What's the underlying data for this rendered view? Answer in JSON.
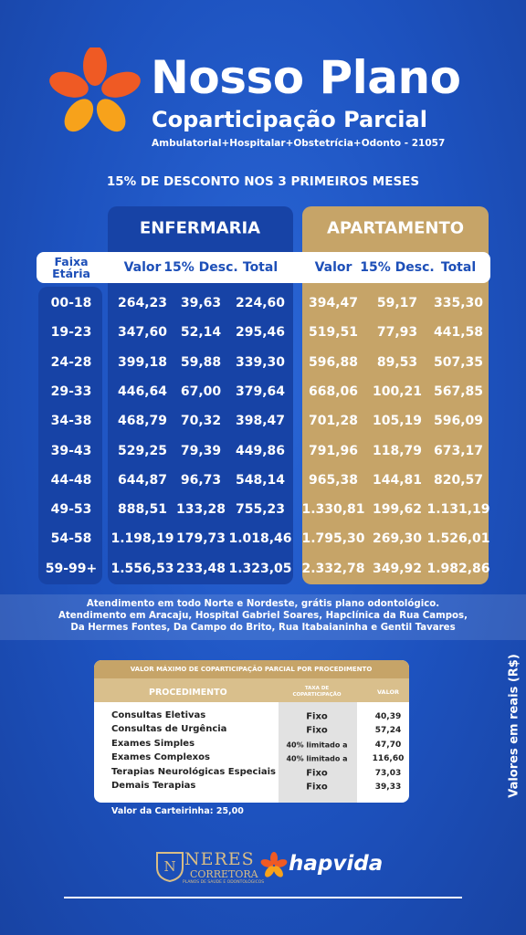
{
  "header": {
    "title": "Nosso Plano",
    "subtitle": "Coparticipação Parcial",
    "coverage": "Ambulatorial+Hospitalar+Obstetrícia+Odonto - 21057"
  },
  "promo": "15% DE DESCONTO NOS 3 PRIMEIROS MESES",
  "table": {
    "groups": [
      "ENFERMARIA",
      "APARTAMENTO"
    ],
    "columns": [
      "Faixa Etária",
      "Valor",
      "15% Desc.",
      "Total",
      "Valor",
      "15% Desc.",
      "Total"
    ],
    "rows": [
      [
        "00-18",
        "264,23",
        "39,63",
        "224,60",
        "394,47",
        "59,17",
        "335,30"
      ],
      [
        "19-23",
        "347,60",
        "52,14",
        "295,46",
        "519,51",
        "77,93",
        "441,58"
      ],
      [
        "24-28",
        "399,18",
        "59,88",
        "339,30",
        "596,88",
        "89,53",
        "507,35"
      ],
      [
        "29-33",
        "446,64",
        "67,00",
        "379,64",
        "668,06",
        "100,21",
        "567,85"
      ],
      [
        "34-38",
        "468,79",
        "70,32",
        "398,47",
        "701,28",
        "105,19",
        "596,09"
      ],
      [
        "39-43",
        "529,25",
        "79,39",
        "449,86",
        "791,96",
        "118,79",
        "673,17"
      ],
      [
        "44-48",
        "644,87",
        "96,73",
        "548,14",
        "965,38",
        "144,81",
        "820,57"
      ],
      [
        "49-53",
        "888,51",
        "133,28",
        "755,23",
        "1.330,81",
        "199,62",
        "1.131,19"
      ],
      [
        "54-58",
        "1.198,19",
        "179,73",
        "1.018,46",
        "1.795,30",
        "269,30",
        "1.526,01"
      ],
      [
        "59-99+",
        "1.556,53",
        "233,48",
        "1.323,05",
        "2.332,78",
        "349,92",
        "1.982,86"
      ]
    ]
  },
  "info": [
    "Atendimento em todo Norte e Nordeste, grátis plano odontológico.",
    "Atendimento em Aracaju, Hospital Gabriel Soares, Hapclínica da Rua Campos,",
    "Da Hermes Fontes, Da Campo do Brito, Rua Itabaianinha e Gentil Tavares"
  ],
  "procedures": {
    "title": "VALOR MÁXIMO DE COPARTICIPAÇÃO PARCIAL POR PROCEDIMENTO",
    "columns": [
      "PROCEDIMENTO",
      "TAXA DE COPARTICIPAÇÃO",
      "VALOR"
    ],
    "rows": [
      [
        "Consultas Eletivas",
        "Fixo",
        "40,39"
      ],
      [
        "Consultas de Urgência",
        "Fixo",
        "57,24"
      ],
      [
        "Exames Simples",
        "40% limitado a",
        "47,70"
      ],
      [
        "Exames Complexos",
        "40% limitado a",
        "116,60"
      ],
      [
        "Terapias Neurológicas Especiais",
        "Fixo",
        "73,03"
      ],
      [
        "Demais Terapias",
        "Fixo",
        "39,33"
      ]
    ]
  },
  "card_fee": "Valor da Carteirinha: 25,00",
  "side_note": "Valores em reais (R$)",
  "footer": {
    "broker": "NERES",
    "broker_type": "CORRETORA",
    "broker_tagline": "PLANOS DE SAÚDE E ODONTOLÓGICOS",
    "operator": "hapvida"
  }
}
